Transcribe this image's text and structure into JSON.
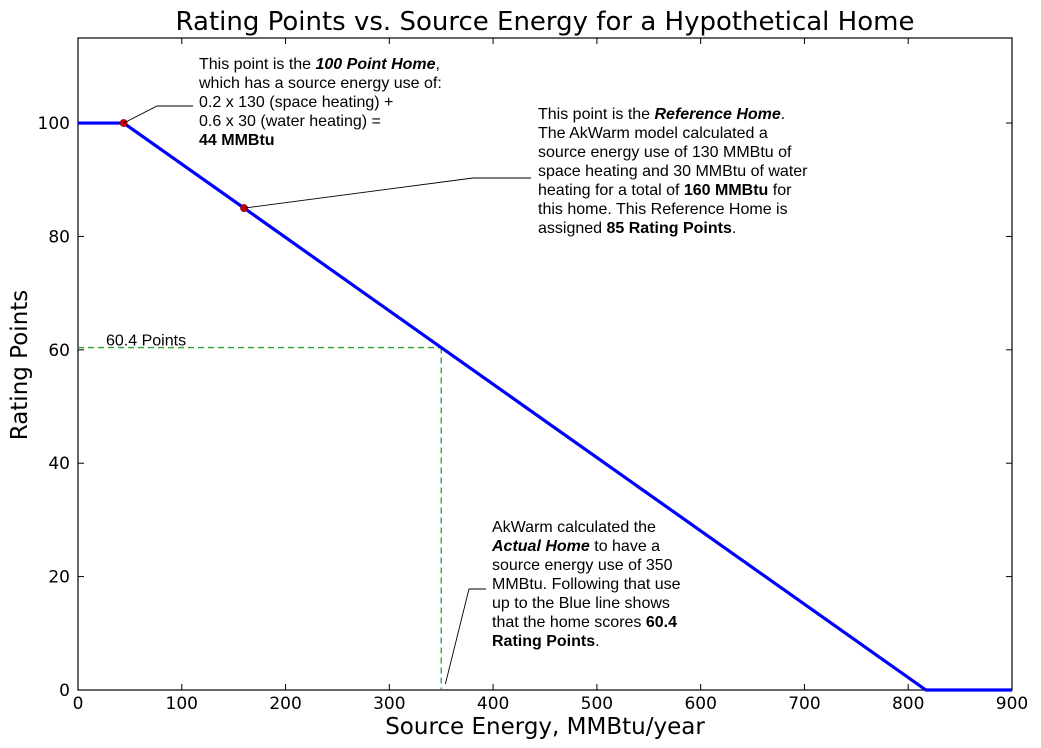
{
  "chart_data": {
    "type": "line",
    "title": "Rating Points vs. Source Energy for a Hypothetical Home",
    "xlabel": "Source Energy, MMBtu/year",
    "ylabel": "Rating Points",
    "xlim": [
      0,
      900
    ],
    "ylim": [
      0,
      115
    ],
    "xticks": [
      0,
      100,
      200,
      300,
      400,
      500,
      600,
      700,
      800,
      900
    ],
    "yticks": [
      0,
      20,
      40,
      60,
      80,
      100
    ],
    "grid": false,
    "series": [
      {
        "color": "#0000ff",
        "points": [
          [
            0,
            100
          ],
          [
            44,
            100
          ],
          [
            160,
            85
          ],
          [
            350,
            60.4
          ],
          [
            817,
            0
          ],
          [
            900,
            0
          ]
        ]
      }
    ],
    "markers": [
      {
        "x": 44,
        "y": 100,
        "color": "#cc0000"
      },
      {
        "x": 160,
        "y": 85,
        "color": "#cc0000"
      }
    ],
    "reference_lines": {
      "x": 350,
      "y": 60.4,
      "color": "#2ca02c",
      "label": "60.4 Points"
    },
    "annotations": {
      "hundred_point_home": {
        "lines": [
          [
            {
              "t": "This point is the "
            },
            {
              "t": "100 Point Home",
              "s": "bi"
            },
            {
              "t": ","
            }
          ],
          [
            {
              "t": "which has a source energy use of:"
            }
          ],
          [
            {
              "t": "0.2 x 130 (space heating) +"
            }
          ],
          [
            {
              "t": "0.6 x   30 (water heating)  ="
            }
          ],
          [
            {
              "t": "44 MMBtu",
              "s": "b"
            }
          ]
        ]
      },
      "reference_home": {
        "lines": [
          [
            {
              "t": "This point is the "
            },
            {
              "t": "Reference Home",
              "s": "bi"
            },
            {
              "t": "."
            }
          ],
          [
            {
              "t": "The AkWarm model calculated a"
            }
          ],
          [
            {
              "t": "source energy use of 130 MMBtu of"
            }
          ],
          [
            {
              "t": "space heating and 30 MMBtu of water"
            }
          ],
          [
            {
              "t": "heating for a total of "
            },
            {
              "t": "160 MMBtu",
              "s": "b"
            },
            {
              "t": " for"
            }
          ],
          [
            {
              "t": "this home.  This Reference Home is"
            }
          ],
          [
            {
              "t": "assigned "
            },
            {
              "t": "85 Rating Points",
              "s": "b"
            },
            {
              "t": "."
            }
          ]
        ]
      },
      "actual_home": {
        "lines": [
          [
            {
              "t": "AkWarm calculated the"
            }
          ],
          [
            {
              "t": "Actual Home",
              "s": "bi"
            },
            {
              "t": " to have a"
            }
          ],
          [
            {
              "t": "source energy use of 350"
            }
          ],
          [
            {
              "t": "MMBtu.  Following that use"
            }
          ],
          [
            {
              "t": "up to the Blue line shows"
            }
          ],
          [
            {
              "t": "that the home scores "
            },
            {
              "t": "60.4",
              "s": "b"
            }
          ],
          [
            {
              "t": "Rating Points",
              "s": "b"
            },
            {
              "t": "."
            }
          ]
        ]
      }
    }
  }
}
